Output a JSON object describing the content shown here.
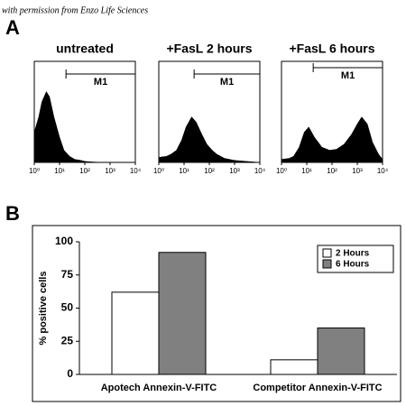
{
  "credit": "with permission from Enzo Life Sciences",
  "panel_labels": [
    "A",
    "B"
  ],
  "chart_data": [
    {
      "type": "area",
      "title": "untreated",
      "log_x": true,
      "color": "#000000",
      "x": [
        1,
        1.5,
        2,
        3,
        4,
        6,
        10,
        15,
        25,
        40,
        70,
        100,
        200,
        500,
        1000,
        10000
      ],
      "values": [
        30,
        45,
        60,
        70,
        65,
        45,
        25,
        12,
        6,
        3,
        2,
        1,
        0.5,
        0,
        0,
        0
      ],
      "xlim": [
        1,
        10000
      ],
      "ylim": [
        0,
        100
      ],
      "xticks": [
        {
          "value": 1,
          "label": "10⁰"
        },
        {
          "value": 10,
          "label": "10¹"
        },
        {
          "value": 100,
          "label": "10²"
        },
        {
          "value": 1000,
          "label": "10³"
        },
        {
          "value": 10000,
          "label": "10⁴"
        }
      ],
      "gate": {
        "label": "M1",
        "range": [
          18,
          10000
        ]
      }
    },
    {
      "type": "area",
      "title": "+FasL 2 hours",
      "log_x": true,
      "color": "#000000",
      "x": [
        1,
        2,
        3,
        5,
        8,
        12,
        20,
        30,
        50,
        80,
        130,
        200,
        400,
        1000,
        3000,
        10000
      ],
      "values": [
        5,
        6,
        8,
        12,
        22,
        35,
        45,
        40,
        28,
        18,
        12,
        8,
        4,
        2,
        1,
        0
      ],
      "xlim": [
        1,
        10000
      ],
      "ylim": [
        0,
        100
      ],
      "xticks": [
        {
          "value": 1,
          "label": "10⁰"
        },
        {
          "value": 10,
          "label": "10¹"
        },
        {
          "value": 100,
          "label": "10²"
        },
        {
          "value": 1000,
          "label": "10³"
        },
        {
          "value": 10000,
          "label": "10⁴"
        }
      ],
      "gate": {
        "label": "M1",
        "range": [
          25,
          10000
        ]
      }
    },
    {
      "type": "area",
      "title": "+FasL 6 hours",
      "log_x": true,
      "color": "#000000",
      "x": [
        1,
        2,
        3,
        5,
        8,
        12,
        20,
        40,
        80,
        150,
        300,
        600,
        1000,
        1500,
        2500,
        4000,
        7000,
        10000
      ],
      "values": [
        3,
        4,
        6,
        15,
        30,
        35,
        25,
        15,
        12,
        13,
        18,
        28,
        38,
        45,
        38,
        20,
        8,
        3
      ],
      "xlim": [
        1,
        10000
      ],
      "ylim": [
        0,
        100
      ],
      "xticks": [
        {
          "value": 1,
          "label": "10⁰"
        },
        {
          "value": 10,
          "label": "10¹"
        },
        {
          "value": 100,
          "label": "10²"
        },
        {
          "value": 1000,
          "label": "10³"
        },
        {
          "value": 10000,
          "label": "10⁴"
        }
      ],
      "gate": {
        "label": "M1",
        "range": [
          18,
          10000
        ]
      }
    },
    {
      "type": "bar",
      "y_label": "% positive cells",
      "categories": [
        "Apotech Annexin-V-FITC",
        "Competitor Annexin-V-FITC"
      ],
      "series": [
        {
          "name": "2 Hours",
          "color": "#ffffff",
          "values": [
            62,
            11
          ]
        },
        {
          "name": "6 Hours",
          "color": "#808080",
          "values": [
            92,
            35
          ]
        }
      ],
      "ylim": [
        0,
        100
      ],
      "yticks": [
        0,
        25,
        50,
        75,
        100
      ],
      "legend": "top-right"
    }
  ]
}
